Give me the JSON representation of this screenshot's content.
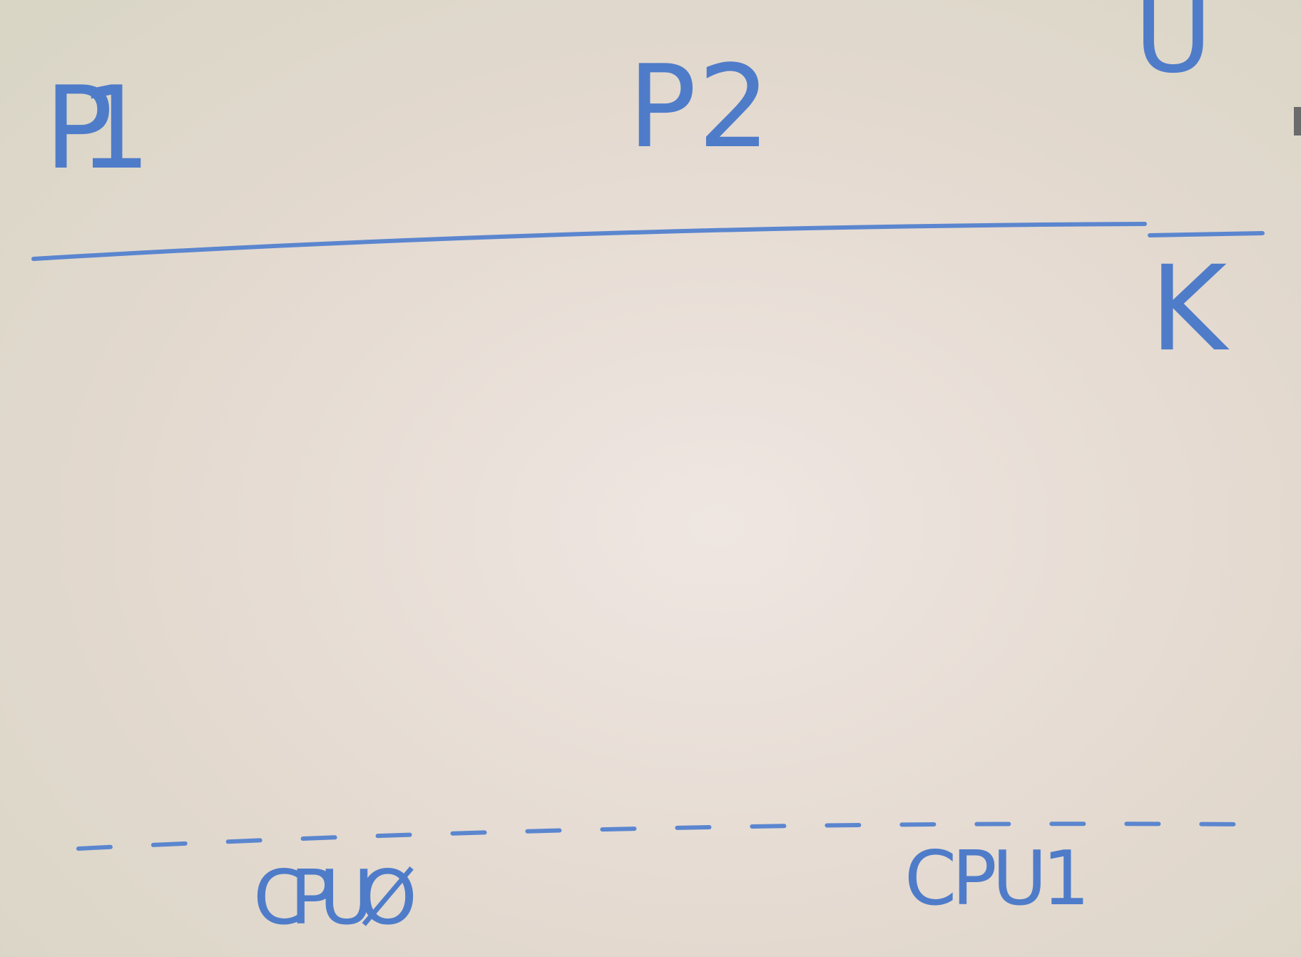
{
  "whiteboard": {
    "processes": [
      "P1",
      "P2"
    ],
    "user_space": "U",
    "kernel_space": "K",
    "cpus": [
      "CPUØ",
      "CPU1"
    ]
  }
}
